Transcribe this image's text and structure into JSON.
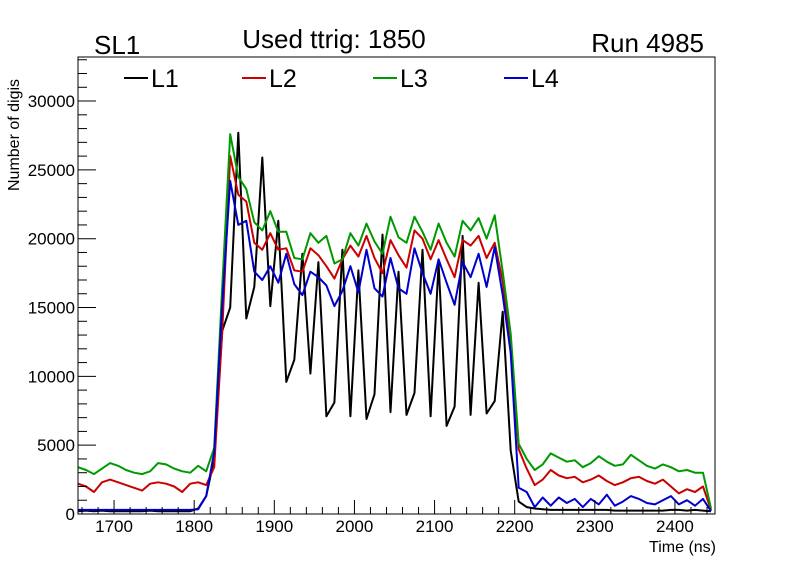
{
  "chart_data": {
    "type": "line",
    "title": "Used ttrig: 1850",
    "title_left": "SL1",
    "title_right": "Run 4985",
    "xlabel": "Time (ns)",
    "ylabel": "Number of digis",
    "xlim": [
      1655,
      2450
    ],
    "ylim": [
      0,
      33200
    ],
    "x_ticks": [
      1700,
      1800,
      1900,
      2000,
      2100,
      2200,
      2300,
      2400
    ],
    "x_minor_step": 20,
    "y_ticks": [
      0,
      5000,
      10000,
      15000,
      20000,
      25000,
      30000
    ],
    "y_minor_step": 1000,
    "grid": false,
    "legend_position": "top",
    "x": [
      1655,
      1665,
      1675,
      1685,
      1695,
      1705,
      1715,
      1725,
      1735,
      1745,
      1755,
      1765,
      1775,
      1785,
      1795,
      1805,
      1815,
      1825,
      1835,
      1845,
      1855,
      1865,
      1875,
      1885,
      1895,
      1905,
      1915,
      1925,
      1935,
      1945,
      1955,
      1965,
      1975,
      1985,
      1995,
      2005,
      2015,
      2025,
      2035,
      2045,
      2055,
      2065,
      2075,
      2085,
      2095,
      2105,
      2115,
      2125,
      2135,
      2145,
      2155,
      2165,
      2175,
      2185,
      2195,
      2205,
      2215,
      2225,
      2235,
      2245,
      2255,
      2265,
      2275,
      2285,
      2295,
      2305,
      2315,
      2325,
      2335,
      2345,
      2355,
      2365,
      2375,
      2385,
      2395,
      2405,
      2415,
      2425,
      2435,
      2445
    ],
    "series": [
      {
        "name": "L1",
        "color": "#000000",
        "values": [
          200,
          250,
          200,
          250,
          200,
          200,
          200,
          200,
          200,
          250,
          200,
          200,
          200,
          200,
          200,
          400,
          1300,
          4000,
          13300,
          15000,
          27700,
          14200,
          16500,
          25900,
          15100,
          21300,
          9600,
          11200,
          18900,
          10200,
          18300,
          7100,
          8100,
          19200,
          7100,
          17700,
          6900,
          8700,
          20300,
          7400,
          17600,
          7200,
          8800,
          19200,
          7100,
          18200,
          6400,
          7800,
          20200,
          7200,
          16800,
          7300,
          8200,
          14700,
          4600,
          900,
          500,
          400,
          350,
          300,
          300,
          300,
          300,
          300,
          300,
          300,
          300,
          250,
          250,
          250,
          250,
          250,
          250,
          250,
          300,
          300,
          250,
          300,
          250,
          200
        ]
      },
      {
        "name": "L2",
        "color": "#cc0000",
        "values": [
          2200,
          2000,
          1600,
          2300,
          2500,
          2300,
          2100,
          1900,
          1700,
          2200,
          2300,
          2200,
          2000,
          1600,
          2200,
          2300,
          2100,
          3400,
          13200,
          26000,
          23200,
          22700,
          19700,
          19200,
          20400,
          19200,
          19300,
          17700,
          17600,
          19300,
          18800,
          18000,
          17100,
          18500,
          19500,
          18700,
          20200,
          18600,
          17500,
          19900,
          18800,
          17900,
          20600,
          20000,
          18500,
          19900,
          18500,
          17200,
          19900,
          19500,
          20200,
          18600,
          19700,
          16900,
          11900,
          4700,
          3300,
          2100,
          2500,
          3200,
          2800,
          2600,
          2700,
          2300,
          2500,
          2800,
          2400,
          2100,
          2300,
          2600,
          2700,
          2400,
          2200,
          2500,
          2000,
          1500,
          1800,
          1600,
          2000,
          300
        ]
      },
      {
        "name": "L3",
        "color": "#009900",
        "values": [
          3400,
          3200,
          2900,
          3300,
          3700,
          3500,
          3200,
          3000,
          2900,
          3100,
          3700,
          3600,
          3300,
          3100,
          3000,
          3500,
          3100,
          4800,
          16500,
          27600,
          24500,
          23600,
          21200,
          20600,
          22000,
          20500,
          20500,
          18600,
          18500,
          20400,
          19700,
          20200,
          18200,
          18500,
          20400,
          19500,
          21100,
          19800,
          18900,
          21600,
          20100,
          19700,
          21600,
          20500,
          19200,
          21100,
          19700,
          18700,
          21300,
          20600,
          21500,
          20000,
          21700,
          17600,
          13100,
          5100,
          4000,
          3200,
          3600,
          4400,
          4100,
          3800,
          3900,
          3400,
          3700,
          4200,
          3800,
          3500,
          3600,
          4300,
          3900,
          3500,
          3300,
          3600,
          3400,
          3100,
          3200,
          3000,
          3000,
          400
        ]
      },
      {
        "name": "L4",
        "color": "#0000cc",
        "values": [
          300,
          300,
          300,
          300,
          300,
          300,
          300,
          300,
          300,
          300,
          300,
          300,
          300,
          300,
          300,
          350,
          1300,
          4500,
          15200,
          24200,
          21000,
          21300,
          17600,
          17000,
          18000,
          16800,
          18900,
          16700,
          15900,
          17600,
          17200,
          16600,
          15100,
          16200,
          18000,
          16100,
          19200,
          16400,
          15800,
          18600,
          16400,
          16000,
          19300,
          17500,
          16000,
          18500,
          16800,
          15200,
          18300,
          17200,
          18900,
          16500,
          19400,
          15900,
          11700,
          1900,
          1600,
          500,
          1200,
          600,
          1200,
          800,
          1100,
          500,
          1100,
          700,
          1400,
          600,
          900,
          1300,
          1100,
          800,
          700,
          1000,
          1300,
          700,
          1000,
          600,
          1100,
          200
        ]
      }
    ]
  }
}
